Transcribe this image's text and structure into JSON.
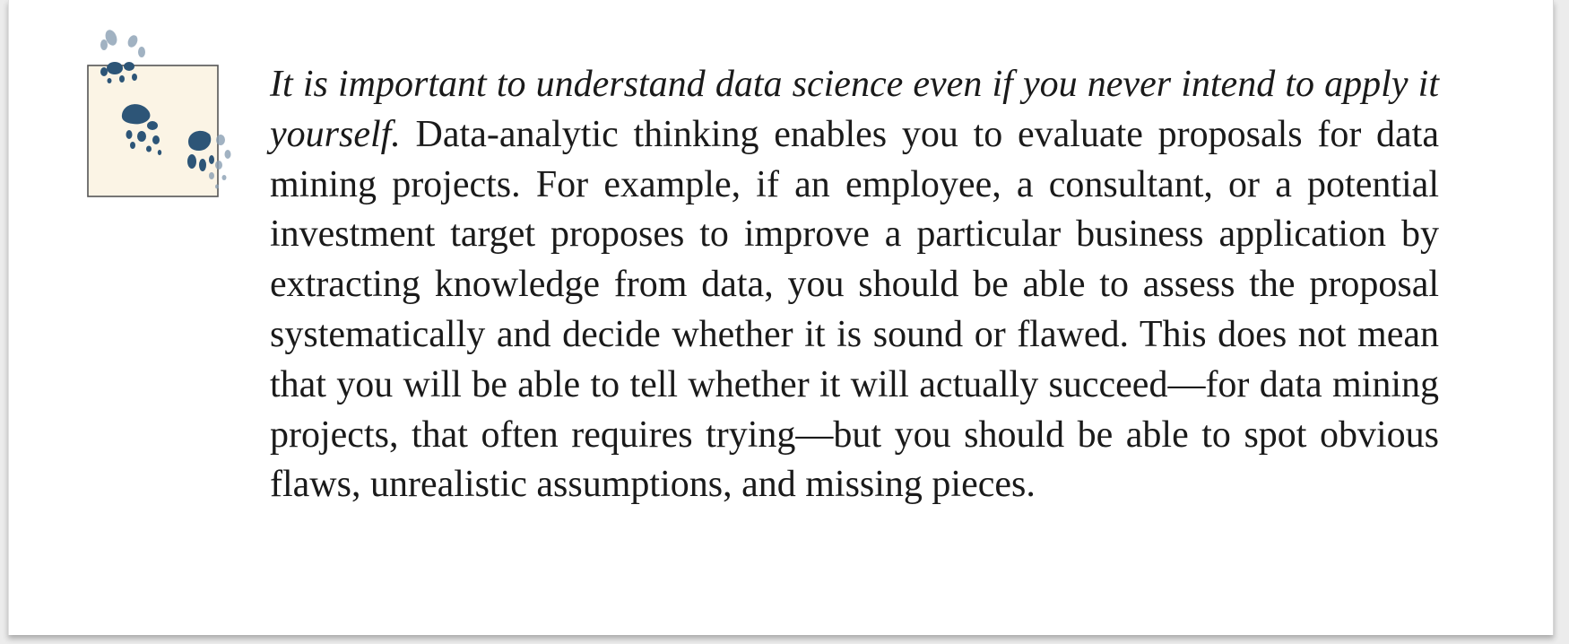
{
  "note": {
    "lead_italic": "It is important to understand data science even if you never intend to apply it yourself.",
    "body": "Data-analytic thinking enables you to evaluate pro­posals for data mining projects. For example, if an employee, a con­sultant, or a potential investment target proposes to improve a partic­ular business application by extracting knowledge from data, you should be able to assess the proposal systematically and decide wheth­er it is sound or flawed. This does not mean that you will be able to tell whether it will actually succeed—for data mining projects, that often requires trying—but you should be able to spot obvious flaws, unrealistic assumptions, and missing pieces."
  },
  "icon": {
    "name": "tip-squirrel-tracks-icon",
    "box_fill": "#fbf4e5",
    "print_color": "#2d5577"
  },
  "colors": {
    "text": "#1a1a1a",
    "page": "#ffffff",
    "background": "#ececec"
  }
}
